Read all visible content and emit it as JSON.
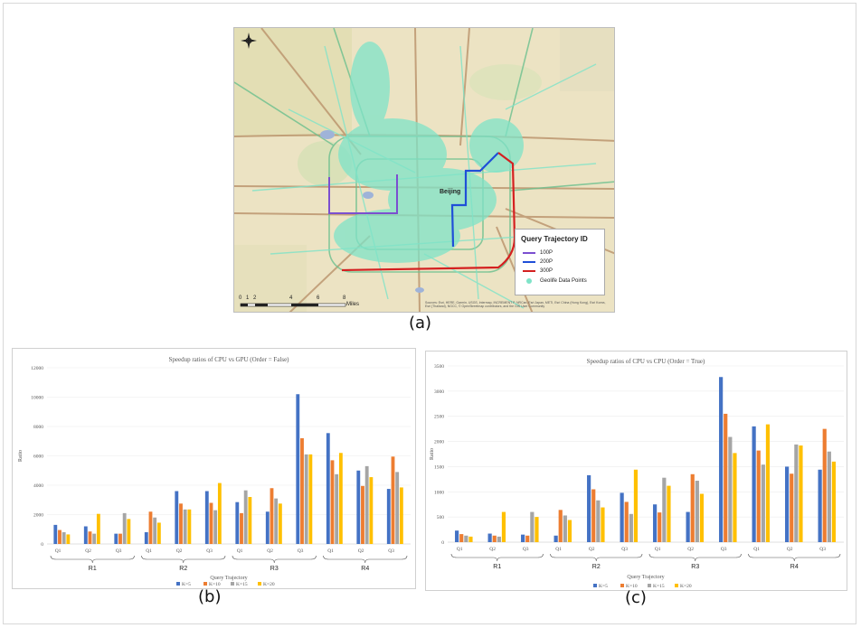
{
  "map": {
    "city_label": "Beijing",
    "legend": {
      "title": "Query Trajectory ID",
      "items": [
        {
          "label": "100P",
          "color": "#7b4fd0"
        },
        {
          "label": "200P",
          "color": "#1f4fd8"
        },
        {
          "label": "300P",
          "color": "#d42020"
        },
        {
          "label": "Geolife Data Points",
          "color": "#7fe3c8"
        }
      ]
    },
    "scale_labels": [
      "0",
      "1",
      "2",
      "4",
      "6",
      "8"
    ],
    "scale_unit": "Miles",
    "attribution": "Sources: Esri, HERE, Garmin, USGS, Intermap, INCREMENT P, NRCan, Esri Japan, METI, Esri China (Hong Kong), Esri Korea, Esri (Thailand), NGCC, © OpenStreetmap contributors, and the GIS User Community",
    "caption": "(a)"
  },
  "colors": {
    "k5": "#4472c4",
    "k10": "#ed7d31",
    "k15": "#a5a5a5",
    "k20": "#ffc000"
  },
  "chart_data": [
    {
      "type": "bar",
      "title": "Speedup ratios of CPU vs GPU (Order = False)",
      "xlabel": "Query Trajectory",
      "ylabel": "Ratio",
      "ylim": [
        0,
        12000
      ],
      "yticks": [
        "0",
        "2000",
        "4000",
        "6000",
        "8000",
        "10000",
        "12000"
      ],
      "categories": [
        "Q1",
        "Q2",
        "Q3",
        "Q1",
        "Q2",
        "Q3",
        "Q1",
        "Q2",
        "Q3",
        "Q1",
        "Q2",
        "Q3"
      ],
      "groups": [
        "R1",
        "R2",
        "R3",
        "R4"
      ],
      "series": [
        {
          "name": "K=5",
          "values": [
            1300,
            1200,
            700,
            800,
            3600,
            3600,
            2850,
            2200,
            10200,
            7550,
            5000,
            3750
          ]
        },
        {
          "name": "K=10",
          "values": [
            950,
            850,
            700,
            2200,
            2750,
            2800,
            2100,
            3800,
            7200,
            5700,
            3950,
            5950
          ]
        },
        {
          "name": "K=15",
          "values": [
            800,
            700,
            2100,
            1800,
            2350,
            2300,
            3650,
            3100,
            6100,
            4750,
            5300,
            4900
          ]
        },
        {
          "name": "K=20",
          "values": [
            650,
            2050,
            1700,
            1450,
            2350,
            4150,
            3200,
            2750,
            6100,
            6200,
            4550,
            3850
          ]
        }
      ],
      "legend_position": "bottom",
      "caption": "(b)"
    },
    {
      "type": "bar",
      "title": "Speedup ratios of CPU vs CPU (Order = True)",
      "xlabel": "Query Trajectory",
      "ylabel": "Ratio",
      "ylim": [
        0,
        3500
      ],
      "yticks": [
        "0",
        "500",
        "1000",
        "1500",
        "2000",
        "2500",
        "3000",
        "3500"
      ],
      "categories": [
        "Q1",
        "Q2",
        "Q3",
        "Q1",
        "Q2",
        "Q3",
        "Q1",
        "Q2",
        "Q3",
        "Q1",
        "Q2",
        "Q3"
      ],
      "groups": [
        "R1",
        "R2",
        "R3",
        "R4"
      ],
      "series": [
        {
          "name": "K=5",
          "values": [
            230,
            170,
            150,
            130,
            1330,
            980,
            750,
            600,
            3280,
            2300,
            1500,
            1440
          ]
        },
        {
          "name": "K=10",
          "values": [
            160,
            130,
            130,
            640,
            1050,
            800,
            590,
            1350,
            2550,
            1820,
            1360,
            2250
          ]
        },
        {
          "name": "K=15",
          "values": [
            130,
            110,
            600,
            530,
            830,
            560,
            1280,
            1220,
            2090,
            1540,
            1940,
            1800
          ]
        },
        {
          "name": "K=20",
          "values": [
            110,
            600,
            500,
            440,
            690,
            1440,
            1120,
            960,
            1770,
            2340,
            1920,
            1600
          ]
        }
      ],
      "legend_position": "bottom",
      "caption": "(c)"
    }
  ]
}
